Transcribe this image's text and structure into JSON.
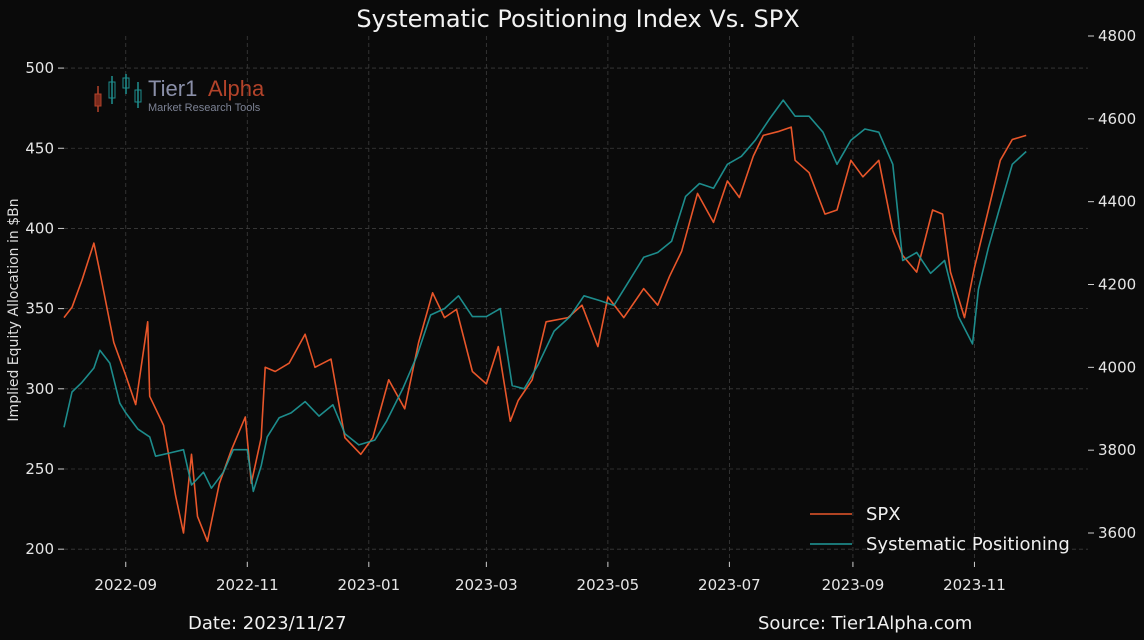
{
  "chart_data": {
    "type": "line",
    "title": "Systematic Positioning Index Vs. SPX",
    "ylabel": "Implied Equity Allocation in $Bn",
    "ylim": [
      192,
      520
    ],
    "y2lim": [
      3530,
      4800
    ],
    "xlim": [
      "2022-08-01",
      "2023-12-28"
    ],
    "grid": true,
    "legend_position": "bottom-right",
    "x_ticks": [
      "2022-09",
      "2022-11",
      "2023-01",
      "2023-03",
      "2023-05",
      "2023-07",
      "2023-09",
      "2023-11"
    ],
    "y_ticks": [
      200,
      250,
      300,
      350,
      400,
      450,
      500
    ],
    "y2_ticks": [
      3600,
      3800,
      4000,
      4200,
      4400,
      4600,
      4800
    ],
    "series": [
      {
        "name": "SPX",
        "axis": "right",
        "color": "#e8562a",
        "points": [
          [
            "2022-08-01",
            4120
          ],
          [
            "2022-08-05",
            4145
          ],
          [
            "2022-08-10",
            4210
          ],
          [
            "2022-08-16",
            4300
          ],
          [
            "2022-08-19",
            4230
          ],
          [
            "2022-08-26",
            4060
          ],
          [
            "2022-09-01",
            3980
          ],
          [
            "2022-09-06",
            3910
          ],
          [
            "2022-09-12",
            4110
          ],
          [
            "2022-09-13",
            3930
          ],
          [
            "2022-09-20",
            3860
          ],
          [
            "2022-09-26",
            3690
          ],
          [
            "2022-09-30",
            3600
          ],
          [
            "2022-10-04",
            3790
          ],
          [
            "2022-10-07",
            3640
          ],
          [
            "2022-10-12",
            3580
          ],
          [
            "2022-10-18",
            3720
          ],
          [
            "2022-10-24",
            3800
          ],
          [
            "2022-10-31",
            3880
          ],
          [
            "2022-11-03",
            3720
          ],
          [
            "2022-11-08",
            3830
          ],
          [
            "2022-11-10",
            4000
          ],
          [
            "2022-11-15",
            3990
          ],
          [
            "2022-11-22",
            4010
          ],
          [
            "2022-11-30",
            4080
          ],
          [
            "2022-12-05",
            4000
          ],
          [
            "2022-12-13",
            4020
          ],
          [
            "2022-12-20",
            3830
          ],
          [
            "2022-12-28",
            3790
          ],
          [
            "2023-01-03",
            3830
          ],
          [
            "2023-01-11",
            3970
          ],
          [
            "2023-01-19",
            3900
          ],
          [
            "2023-01-26",
            4060
          ],
          [
            "2023-02-02",
            4180
          ],
          [
            "2023-02-08",
            4120
          ],
          [
            "2023-02-14",
            4140
          ],
          [
            "2023-02-22",
            3990
          ],
          [
            "2023-03-01",
            3960
          ],
          [
            "2023-03-07",
            4050
          ],
          [
            "2023-03-13",
            3870
          ],
          [
            "2023-03-17",
            3920
          ],
          [
            "2023-03-24",
            3970
          ],
          [
            "2023-03-31",
            4110
          ],
          [
            "2023-04-11",
            4120
          ],
          [
            "2023-04-18",
            4150
          ],
          [
            "2023-04-26",
            4050
          ],
          [
            "2023-05-01",
            4170
          ],
          [
            "2023-05-09",
            4120
          ],
          [
            "2023-05-19",
            4190
          ],
          [
            "2023-05-26",
            4150
          ],
          [
            "2023-06-01",
            4220
          ],
          [
            "2023-06-07",
            4280
          ],
          [
            "2023-06-15",
            4420
          ],
          [
            "2023-06-23",
            4350
          ],
          [
            "2023-06-30",
            4450
          ],
          [
            "2023-07-06",
            4410
          ],
          [
            "2023-07-13",
            4510
          ],
          [
            "2023-07-18",
            4560
          ],
          [
            "2023-07-26",
            4570
          ],
          [
            "2023-08-01",
            4580
          ],
          [
            "2023-08-03",
            4500
          ],
          [
            "2023-08-10",
            4470
          ],
          [
            "2023-08-18",
            4370
          ],
          [
            "2023-08-24",
            4380
          ],
          [
            "2023-08-31",
            4500
          ],
          [
            "2023-09-06",
            4460
          ],
          [
            "2023-09-14",
            4500
          ],
          [
            "2023-09-21",
            4330
          ],
          [
            "2023-09-26",
            4270
          ],
          [
            "2023-10-03",
            4230
          ],
          [
            "2023-10-11",
            4380
          ],
          [
            "2023-10-16",
            4370
          ],
          [
            "2023-10-20",
            4230
          ],
          [
            "2023-10-27",
            4120
          ],
          [
            "2023-11-01",
            4240
          ],
          [
            "2023-11-08",
            4380
          ],
          [
            "2023-11-14",
            4500
          ],
          [
            "2023-11-20",
            4550
          ],
          [
            "2023-11-27",
            4560
          ]
        ]
      },
      {
        "name": "Systematic Positioning",
        "axis": "left",
        "color": "#1f9a9a",
        "points": [
          [
            "2022-08-01",
            276
          ],
          [
            "2022-08-05",
            298
          ],
          [
            "2022-08-10",
            304
          ],
          [
            "2022-08-16",
            313
          ],
          [
            "2022-08-19",
            324
          ],
          [
            "2022-08-24",
            316
          ],
          [
            "2022-08-29",
            291
          ],
          [
            "2022-09-01",
            285
          ],
          [
            "2022-09-07",
            275
          ],
          [
            "2022-09-13",
            270
          ],
          [
            "2022-09-16",
            258
          ],
          [
            "2022-09-23",
            260
          ],
          [
            "2022-09-30",
            262
          ],
          [
            "2022-10-04",
            240
          ],
          [
            "2022-10-10",
            248
          ],
          [
            "2022-10-14",
            238
          ],
          [
            "2022-10-20",
            248
          ],
          [
            "2022-10-25",
            262
          ],
          [
            "2022-11-01",
            262
          ],
          [
            "2022-11-04",
            236
          ],
          [
            "2022-11-08",
            252
          ],
          [
            "2022-11-11",
            270
          ],
          [
            "2022-11-17",
            282
          ],
          [
            "2022-11-23",
            285
          ],
          [
            "2022-11-30",
            292
          ],
          [
            "2022-12-07",
            283
          ],
          [
            "2022-12-14",
            290
          ],
          [
            "2022-12-20",
            272
          ],
          [
            "2022-12-27",
            265
          ],
          [
            "2023-01-04",
            268
          ],
          [
            "2023-01-10",
            280
          ],
          [
            "2023-01-18",
            300
          ],
          [
            "2023-01-25",
            320
          ],
          [
            "2023-02-01",
            346
          ],
          [
            "2023-02-08",
            350
          ],
          [
            "2023-02-15",
            358
          ],
          [
            "2023-02-22",
            345
          ],
          [
            "2023-03-01",
            345
          ],
          [
            "2023-03-08",
            350
          ],
          [
            "2023-03-14",
            302
          ],
          [
            "2023-03-20",
            300
          ],
          [
            "2023-03-27",
            315
          ],
          [
            "2023-04-04",
            336
          ],
          [
            "2023-04-12",
            345
          ],
          [
            "2023-04-19",
            358
          ],
          [
            "2023-04-27",
            355
          ],
          [
            "2023-05-04",
            352
          ],
          [
            "2023-05-12",
            368
          ],
          [
            "2023-05-19",
            382
          ],
          [
            "2023-05-26",
            385
          ],
          [
            "2023-06-02",
            392
          ],
          [
            "2023-06-09",
            420
          ],
          [
            "2023-06-16",
            428
          ],
          [
            "2023-06-23",
            425
          ],
          [
            "2023-06-30",
            440
          ],
          [
            "2023-07-07",
            445
          ],
          [
            "2023-07-14",
            455
          ],
          [
            "2023-07-21",
            468
          ],
          [
            "2023-07-28",
            480
          ],
          [
            "2023-08-03",
            470
          ],
          [
            "2023-08-10",
            470
          ],
          [
            "2023-08-17",
            460
          ],
          [
            "2023-08-24",
            440
          ],
          [
            "2023-08-31",
            455
          ],
          [
            "2023-09-07",
            462
          ],
          [
            "2023-09-14",
            460
          ],
          [
            "2023-09-21",
            440
          ],
          [
            "2023-09-26",
            380
          ],
          [
            "2023-10-03",
            385
          ],
          [
            "2023-10-10",
            372
          ],
          [
            "2023-10-17",
            380
          ],
          [
            "2023-10-24",
            345
          ],
          [
            "2023-10-31",
            328
          ],
          [
            "2023-11-03",
            362
          ],
          [
            "2023-11-08",
            388
          ],
          [
            "2023-11-13",
            410
          ],
          [
            "2023-11-20",
            440
          ],
          [
            "2023-11-27",
            448
          ]
        ]
      }
    ]
  },
  "logo": {
    "name": "Tier1",
    "name_accent": "Alpha",
    "subtitle": "Market  Research Tools",
    "accent_color": "#b3432a"
  },
  "footer": {
    "date": "Date: 2023/11/27",
    "source": "Source: Tier1Alpha.com"
  },
  "colors": {
    "background": "#0a0a0a",
    "grid": "#3c3c3c",
    "text": "#e8e8e8"
  }
}
